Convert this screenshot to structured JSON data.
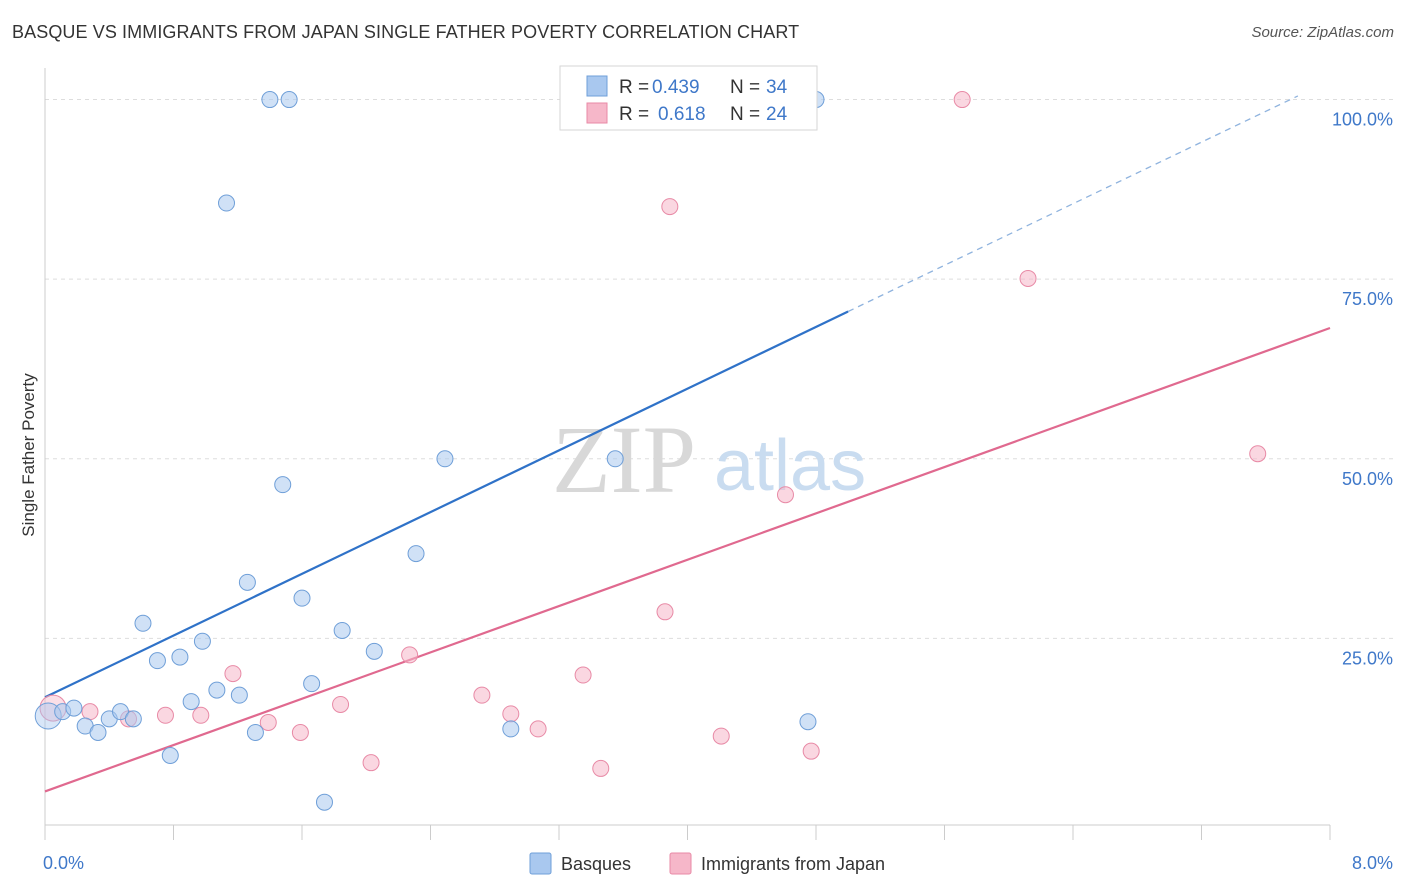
{
  "header": {
    "title": "BASQUE VS IMMIGRANTS FROM JAPAN SINGLE FATHER POVERTY CORRELATION CHART",
    "source": "Source: ZipAtlas.com"
  },
  "watermark": {
    "zip": "ZIP",
    "atlas": "atlas"
  },
  "legend": {
    "rows": [
      {
        "r_label": "R =",
        "r_value": "0.439",
        "n_label": "N =",
        "n_value": "34",
        "color": "#a9c8ef"
      },
      {
        "r_label": "R =",
        "r_value": "0.618",
        "n_label": "N =",
        "n_value": "24",
        "color": "#f6b7c9"
      }
    ]
  },
  "bottom_legend": [
    {
      "label": "Basques",
      "color": "#a9c8ef"
    },
    {
      "label": "Immigrants from Japan",
      "color": "#f6b7c9"
    }
  ],
  "chart_data": {
    "type": "scatter",
    "title": "BASQUE VS IMMIGRANTS FROM JAPAN SINGLE FATHER POVERTY CORRELATION CHART",
    "xlabel": "",
    "ylabel": "Single Father Poverty",
    "xlim": [
      0,
      8
    ],
    "ylim": [
      0,
      103
    ],
    "x_tick_labels": [
      {
        "value": 0,
        "label": "0.0%"
      },
      {
        "value": 8,
        "label": "8.0%"
      }
    ],
    "y_tick_labels": [
      {
        "value": 25,
        "label": "25.0%"
      },
      {
        "value": 50,
        "label": "50.0%"
      },
      {
        "value": 75,
        "label": "75.0%"
      },
      {
        "value": 100,
        "label": "100.0%"
      }
    ],
    "grid": true,
    "legend_position": "top-center",
    "series": [
      {
        "name": "Basques",
        "color": "#a9c8ef",
        "stroke": "#6f9fd8",
        "trend": {
          "x0": 0,
          "y0": 16.8,
          "x1": 5.0,
          "y1": 70.5,
          "dashed_to_x": 7.8,
          "dashed_to_y": 100.5,
          "color": "#2f72c8"
        },
        "points": [
          [
            0.02,
            14.2
          ],
          [
            0.11,
            14.8
          ],
          [
            0.18,
            15.3
          ],
          [
            0.25,
            12.8
          ],
          [
            0.33,
            11.9
          ],
          [
            0.4,
            13.8
          ],
          [
            0.47,
            14.8
          ],
          [
            0.55,
            13.8
          ],
          [
            0.61,
            27.1
          ],
          [
            0.7,
            21.9
          ],
          [
            0.78,
            8.7
          ],
          [
            0.84,
            22.4
          ],
          [
            0.91,
            16.2
          ],
          [
            0.98,
            24.6
          ],
          [
            1.07,
            17.8
          ],
          [
            1.13,
            85.6
          ],
          [
            1.21,
            17.1
          ],
          [
            1.26,
            32.8
          ],
          [
            1.31,
            11.9
          ],
          [
            1.4,
            100.0
          ],
          [
            1.48,
            46.4
          ],
          [
            1.52,
            100.0
          ],
          [
            1.6,
            30.6
          ],
          [
            1.66,
            18.7
          ],
          [
            1.74,
            2.2
          ],
          [
            1.85,
            26.1
          ],
          [
            2.05,
            23.2
          ],
          [
            2.31,
            36.8
          ],
          [
            2.49,
            50.0
          ],
          [
            2.9,
            12.4
          ],
          [
            3.3,
            100.0
          ],
          [
            3.55,
            50.0
          ],
          [
            4.75,
            13.4
          ],
          [
            4.8,
            100.0
          ]
        ]
      },
      {
        "name": "Immigrants from Japan",
        "color": "#f6b7c9",
        "stroke": "#e88aa6",
        "trend": {
          "x0": 0,
          "y0": 3.7,
          "x1": 8.0,
          "y1": 68.2,
          "color": "#e0698f"
        },
        "points": [
          [
            0.05,
            15.3
          ],
          [
            0.28,
            14.8
          ],
          [
            0.52,
            13.8
          ],
          [
            0.75,
            14.3
          ],
          [
            0.97,
            14.3
          ],
          [
            1.17,
            20.1
          ],
          [
            1.39,
            13.3
          ],
          [
            1.59,
            11.9
          ],
          [
            1.84,
            15.8
          ],
          [
            2.03,
            7.7
          ],
          [
            2.27,
            22.7
          ],
          [
            2.72,
            17.1
          ],
          [
            2.9,
            14.5
          ],
          [
            3.07,
            12.4
          ],
          [
            3.35,
            19.9
          ],
          [
            3.46,
            6.9
          ],
          [
            3.86,
            28.7
          ],
          [
            3.89,
            85.1
          ],
          [
            4.21,
            11.4
          ],
          [
            4.61,
            45.0
          ],
          [
            4.77,
            9.3
          ],
          [
            5.71,
            100.0
          ],
          [
            6.12,
            75.1
          ],
          [
            7.55,
            50.7
          ]
        ]
      }
    ]
  }
}
